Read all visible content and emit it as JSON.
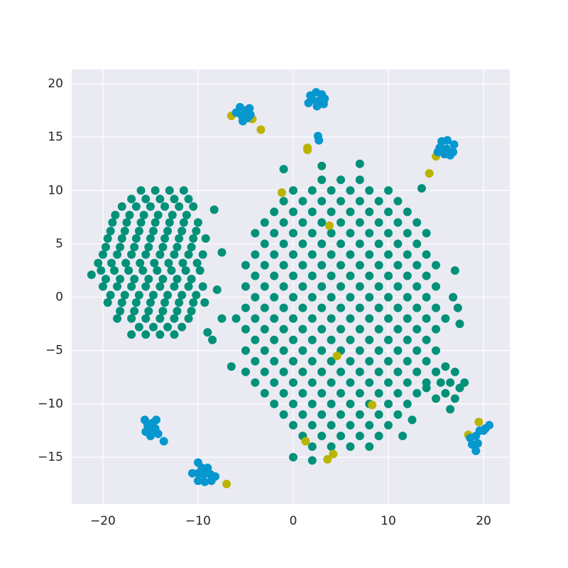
{
  "chart_data": {
    "type": "scatter",
    "xlim": [
      -23.28,
      22.76
    ],
    "ylim": [
      -19.39,
      21.33
    ],
    "xticks": [
      {
        "value": -20,
        "label": "−20"
      },
      {
        "value": -10,
        "label": "−10"
      },
      0,
      10,
      20
    ],
    "yticks": [
      {
        "value": -15,
        "label": "−15"
      },
      {
        "value": -10,
        "label": "−10"
      },
      {
        "value": -5,
        "label": "−5"
      },
      0,
      5,
      10,
      15,
      20
    ],
    "grid": true,
    "series": [
      {
        "color": "#009179",
        "x": [
          -16,
          -14.5,
          -13,
          -11.5,
          -17,
          -15.5,
          -14,
          -12.5,
          -11,
          -18,
          -16.5,
          -15,
          -13.5,
          -12,
          -10.5,
          -18.7,
          -17.2,
          -15.7,
          -14.2,
          -12.7,
          -11.2,
          -19,
          -17.5,
          -16,
          -14.5,
          -13,
          -11.5,
          -10,
          -19.2,
          -17.7,
          -16.2,
          -14.7,
          -13.2,
          -11.7,
          -10.2,
          -19.5,
          -18,
          -16.5,
          -15,
          -13.5,
          -12,
          -10.5,
          -9.2,
          -19.7,
          -18.2,
          -16.7,
          -15.2,
          -13.7,
          -12.2,
          -10.7,
          -20,
          -18.5,
          -17,
          -15.5,
          -14,
          -12.5,
          -11,
          -9.5,
          -20.5,
          -19.1,
          -17.6,
          -16.1,
          -14.6,
          -13.1,
          -11.6,
          -10.1,
          -20.2,
          -18.8,
          -17.3,
          -15.8,
          -14.3,
          -12.8,
          -11.3,
          -9.8,
          -19.7,
          -18.2,
          -16.7,
          -15.2,
          -13.7,
          -12.2,
          -10.7,
          -20,
          -18.5,
          -17,
          -15.5,
          -14,
          -12.5,
          -11,
          -9.5,
          -19.2,
          -17.7,
          -16.2,
          -14.7,
          -13.2,
          -11.7,
          -10.2,
          -19.5,
          -18,
          -16.5,
          -15,
          -13.5,
          -12,
          -10.5,
          -9.3,
          -18.2,
          -16.7,
          -15.2,
          -13.7,
          -12.2,
          -10.7,
          -18.5,
          -17,
          -15.5,
          -14,
          -12.5,
          -11,
          -16.2,
          -14.7,
          -13.2,
          -11.7,
          -17,
          -15.5,
          -14,
          -12.5,
          -8.3,
          -7.5,
          -8,
          -9,
          -21.2,
          -8.5
        ],
        "y": [
          10,
          10,
          10,
          10,
          9.2,
          9.2,
          9.2,
          9.2,
          9.2,
          8.5,
          8.5,
          8.5,
          8.5,
          8.5,
          8.5,
          7.7,
          7.7,
          7.7,
          7.7,
          7.7,
          7.7,
          7,
          7,
          7,
          7,
          7,
          7,
          7,
          6.2,
          6.2,
          6.2,
          6.2,
          6.2,
          6.2,
          6.2,
          5.5,
          5.5,
          5.5,
          5.5,
          5.5,
          5.5,
          5.5,
          5.5,
          4.7,
          4.7,
          4.7,
          4.7,
          4.7,
          4.7,
          4.7,
          4,
          4,
          4,
          4,
          4,
          4,
          4,
          4,
          3.2,
          3.2,
          3.2,
          3.2,
          3.2,
          3.2,
          3.2,
          3.2,
          2.5,
          2.5,
          2.5,
          2.5,
          2.5,
          2.5,
          2.5,
          2.5,
          1.7,
          1.7,
          1.7,
          1.7,
          1.7,
          1.7,
          1.7,
          1,
          1,
          1,
          1,
          1,
          1,
          1,
          1,
          0.2,
          0.2,
          0.2,
          0.2,
          0.2,
          0.2,
          0.2,
          -0.5,
          -0.5,
          -0.5,
          -0.5,
          -0.5,
          -0.5,
          -0.5,
          -0.5,
          -1.3,
          -1.3,
          -1.3,
          -1.3,
          -1.3,
          -1.3,
          -2,
          -2,
          -2,
          -2,
          -2,
          -2,
          -2.8,
          -2.8,
          -2.8,
          -2.8,
          -3.5,
          -3.5,
          -3.5,
          -3.5,
          8.2,
          4.2,
          0.7,
          -3.3,
          2.1,
          -4
        ]
      },
      {
        "color": "#009179",
        "x": [
          3,
          5,
          7,
          0,
          2,
          4,
          6,
          8,
          10,
          -1,
          1,
          3,
          5,
          7,
          9,
          11,
          -2,
          0,
          2,
          4,
          6,
          8,
          10,
          12,
          -3,
          -1,
          1,
          3,
          5,
          7,
          9,
          11,
          13,
          -4,
          -2,
          0,
          2,
          4,
          6,
          8,
          10,
          12,
          14,
          -3,
          -1,
          1,
          3,
          5,
          7,
          9,
          11,
          13,
          -4,
          -2,
          0,
          2,
          4,
          6,
          8,
          10,
          12,
          14,
          -5,
          -3,
          -1,
          1,
          3,
          5,
          7,
          9,
          11,
          13,
          15,
          -4,
          -2,
          0,
          2,
          4,
          6,
          8,
          10,
          12,
          14,
          -5,
          -3,
          -1,
          1,
          3,
          5,
          7,
          9,
          11,
          13,
          15,
          -4,
          -2,
          0,
          2,
          4,
          6,
          8,
          10,
          12,
          14,
          -5,
          -3,
          -1,
          1,
          3,
          5,
          7,
          9,
          11,
          13,
          15,
          -6,
          -4,
          -2,
          0,
          2,
          4,
          6,
          8,
          10,
          12,
          14,
          16,
          -5,
          -3,
          -1,
          1,
          3,
          5,
          7,
          9,
          11,
          13,
          15,
          -4,
          -2,
          0,
          2,
          4,
          6,
          8,
          10,
          12,
          14,
          -5,
          -3,
          -1,
          1,
          3,
          5,
          7,
          9,
          11,
          13,
          15,
          -4,
          -2,
          0,
          2,
          4,
          6,
          8,
          10,
          12,
          14,
          -5,
          -3,
          -1,
          1,
          3,
          5,
          7,
          9,
          11,
          13,
          15,
          -4,
          -2,
          0,
          2,
          4,
          6,
          8,
          10,
          12,
          14,
          -3,
          -1,
          1,
          3,
          5,
          7,
          9,
          11,
          13,
          -2,
          0,
          2,
          4,
          6,
          8,
          10,
          12,
          -1,
          1,
          3,
          5,
          7,
          9,
          11,
          0,
          2,
          4,
          6,
          8,
          10,
          1,
          3,
          5,
          7,
          9,
          2,
          4,
          6,
          8
        ],
        "y": [
          11,
          11,
          11,
          10,
          10,
          10,
          10,
          10,
          10,
          9,
          9,
          9,
          9,
          9,
          9,
          9,
          8,
          8,
          8,
          8,
          8,
          8,
          8,
          8,
          7,
          7,
          7,
          7,
          7,
          7,
          7,
          7,
          7,
          6,
          6,
          6,
          6,
          6,
          6,
          6,
          6,
          6,
          6,
          5,
          5,
          5,
          5,
          5,
          5,
          5,
          5,
          5,
          4,
          4,
          4,
          4,
          4,
          4,
          4,
          4,
          4,
          4,
          3,
          3,
          3,
          3,
          3,
          3,
          3,
          3,
          3,
          3,
          3,
          2,
          2,
          2,
          2,
          2,
          2,
          2,
          2,
          2,
          2,
          1,
          1,
          1,
          1,
          1,
          1,
          1,
          1,
          1,
          1,
          1,
          0,
          0,
          0,
          0,
          0,
          0,
          0,
          0,
          0,
          0,
          -1,
          -1,
          -1,
          -1,
          -1,
          -1,
          -1,
          -1,
          -1,
          -1,
          -1,
          -2,
          -2,
          -2,
          -2,
          -2,
          -2,
          -2,
          -2,
          -2,
          -2,
          -2,
          -2,
          -3,
          -3,
          -3,
          -3,
          -3,
          -3,
          -3,
          -3,
          -3,
          -3,
          -3,
          -4,
          -4,
          -4,
          -4,
          -4,
          -4,
          -4,
          -4,
          -4,
          -4,
          -5,
          -5,
          -5,
          -5,
          -5,
          -5,
          -5,
          -5,
          -5,
          -5,
          -5,
          -6,
          -6,
          -6,
          -6,
          -6,
          -6,
          -6,
          -6,
          -6,
          -6,
          -7,
          -7,
          -7,
          -7,
          -7,
          -7,
          -7,
          -7,
          -7,
          -7,
          -7,
          -8,
          -8,
          -8,
          -8,
          -8,
          -8,
          -8,
          -8,
          -8,
          -8,
          -9,
          -9,
          -9,
          -9,
          -9,
          -9,
          -9,
          -9,
          -9,
          -10,
          -10,
          -10,
          -10,
          -10,
          -10,
          -10,
          -10,
          -11,
          -11,
          -11,
          -11,
          -11,
          -11,
          -11,
          -12,
          -12,
          -12,
          -12,
          -12,
          -12,
          -13,
          -13,
          -13,
          -13,
          -13,
          -14,
          -14,
          -14,
          -14
        ]
      },
      {
        "color": "#009179",
        "x": [
          15,
          16,
          17,
          15.5,
          16.5,
          17.5,
          16,
          17,
          15,
          18,
          16.5,
          14,
          17.3,
          17.5,
          17,
          16.8,
          12.5,
          11.5,
          -7.5,
          -6.5,
          -1,
          3,
          7,
          0,
          2,
          13.5
        ],
        "y": [
          -7,
          -6.5,
          -7,
          -8,
          -8,
          -8.5,
          -9,
          -9.5,
          -9.5,
          -8,
          -10.5,
          -8.5,
          -1,
          -2.5,
          2.5,
          0,
          -11.5,
          -13,
          -2,
          -6.5,
          12,
          12.3,
          12.5,
          -15,
          -15.3,
          10.2
        ]
      },
      {
        "color": "#bab400",
        "x": [
          -6.5,
          -4.3,
          -3.4,
          1.5,
          1.5,
          14.3,
          15,
          -1.2,
          3.8,
          4.6,
          8.3,
          1.3,
          3.6,
          4.2,
          -7,
          18.4,
          19.5
        ],
        "y": [
          17,
          16.7,
          15.7,
          14,
          13.8,
          11.6,
          13.2,
          9.8,
          6.7,
          -5.5,
          -10.1,
          -13.5,
          -15.2,
          -14.7,
          -17.5,
          -12.9,
          -11.7
        ]
      },
      {
        "color": "#0797cf",
        "x": [
          -5.6,
          -5,
          -4.6,
          -5.4,
          -4.8,
          -5.3,
          -6,
          -4.5,
          1.8,
          2.4,
          3,
          2,
          2.7,
          3.3,
          2.5,
          1.6,
          3.2,
          2.6,
          2.7,
          15.6,
          16.2,
          16.9,
          15.4,
          16.1,
          16.8,
          15.9,
          16.5,
          15.2,
          -15.6,
          -15.3,
          -14.8,
          -14.4,
          -15.5,
          -15,
          -14.5,
          -15,
          -14.2,
          -13.6,
          -10,
          -9.6,
          -9,
          -10,
          -9.4,
          -8.7,
          -10,
          -9.3,
          -8.6,
          -8.2,
          -10.6,
          18.6,
          19.2,
          18.8,
          19.4,
          19.2,
          19.6,
          20.2,
          20.6,
          20
        ],
        "y": [
          17.8,
          17.5,
          17.7,
          17,
          16.8,
          16.5,
          17.3,
          17.1,
          18.9,
          19.2,
          19,
          18.5,
          18.4,
          18.6,
          17.9,
          18.2,
          18.1,
          15.1,
          14.7,
          14.6,
          14.7,
          14.3,
          14,
          13.9,
          13.6,
          13.4,
          13.3,
          13.6,
          -11.5,
          -12,
          -11.8,
          -11.5,
          -12.6,
          -12.5,
          -12.3,
          -13,
          -12.8,
          -13.5,
          -15.5,
          -16,
          -16,
          -16.5,
          -16.6,
          -16.6,
          -17.2,
          -17.3,
          -17.2,
          -16.8,
          -16.5,
          -13.2,
          -13,
          -13.8,
          -13.7,
          -14.4,
          -12.5,
          -12.3,
          -12,
          -12.5
        ]
      }
    ]
  }
}
